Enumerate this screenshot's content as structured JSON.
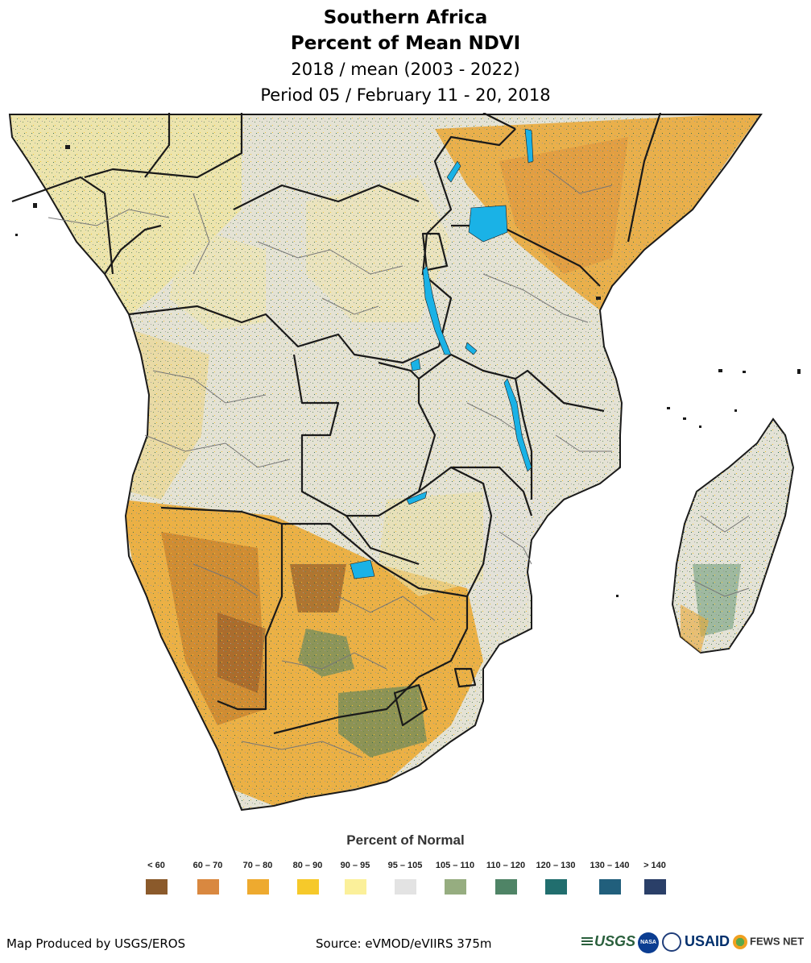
{
  "header": {
    "line1": "Southern Africa",
    "line2": "Percent of Mean NDVI",
    "line3": "2018 / mean (2003 - 2022)",
    "line4": "Period 05 / February 11 - 20, 2018"
  },
  "legend": {
    "title": "Percent of Normal",
    "classes": [
      {
        "label": "< 60",
        "color": "#8b5a2b"
      },
      {
        "label": "60 – 70",
        "color": "#d98840"
      },
      {
        "label": "70 – 80",
        "color": "#eeaa2f"
      },
      {
        "label": "80 – 90",
        "color": "#f6c92a"
      },
      {
        "label": "90 – 95",
        "color": "#fbf09a"
      },
      {
        "label": "95 – 105",
        "color": "#e3e3e3"
      },
      {
        "label": "105 – 110",
        "color": "#96ad80"
      },
      {
        "label": "110 – 120",
        "color": "#4f8466"
      },
      {
        "label": "120 – 130",
        "color": "#216e6e"
      },
      {
        "label": "130 – 140",
        "color": "#215f7c"
      },
      {
        "label": "> 140",
        "color": "#2a3f68"
      }
    ]
  },
  "footer": {
    "producer": "Map Produced by USGS/EROS",
    "source": "Source: eVMOD/eVIIRS 375m"
  },
  "logos": {
    "usgs": "USGS",
    "nasa": "NASA",
    "usaid": "USAID",
    "fews": "FEWS NET"
  },
  "map_colors": {
    "water": "#1ab2e6",
    "border": "#1a1a1a",
    "admin": "#777777"
  }
}
